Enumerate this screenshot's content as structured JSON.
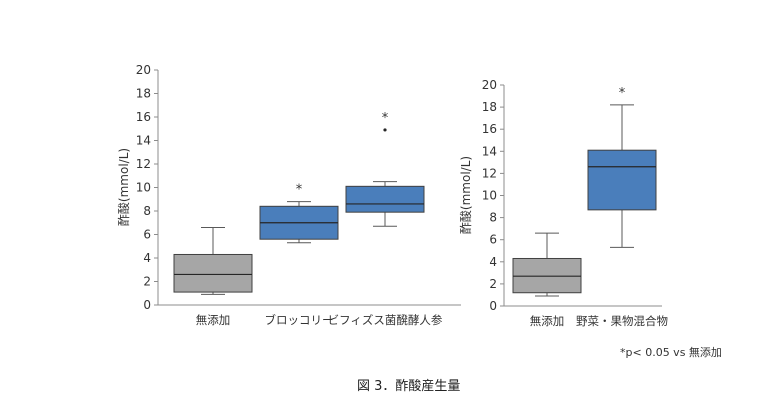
{
  "chart_data": [
    {
      "type": "box",
      "ylabel": "酢酸(mmol/L)",
      "ylim": [
        0,
        20
      ],
      "yticks": [
        0,
        2,
        4,
        6,
        8,
        10,
        12,
        14,
        16,
        18,
        20
      ],
      "categories": [
        "無添加",
        "ブロッコリー",
        "ビフィズス菌醗酵人参"
      ],
      "boxes": [
        {
          "category": "無添加",
          "min": 0.9,
          "q1": 1.1,
          "median": 2.6,
          "q3": 4.3,
          "max": 6.6,
          "outliers": [],
          "significant": false,
          "color": "#a6a6a6"
        },
        {
          "category": "ブロッコリー",
          "min": 5.3,
          "q1": 5.6,
          "median": 7.0,
          "q3": 8.4,
          "max": 8.8,
          "outliers": [],
          "significant": true,
          "color": "#4a7ebb"
        },
        {
          "category": "ビフィズス菌醗酵人参",
          "min": 6.7,
          "q1": 7.9,
          "median": 8.6,
          "q3": 10.1,
          "max": 10.5,
          "outliers": [
            14.9
          ],
          "significant": true,
          "color": "#4a7ebb"
        }
      ]
    },
    {
      "type": "box",
      "ylabel": "酢酸(mmol/L)",
      "ylim": [
        0,
        20
      ],
      "yticks": [
        0,
        2,
        4,
        6,
        8,
        10,
        12,
        14,
        16,
        18,
        20
      ],
      "categories": [
        "無添加",
        "野菜・果物混合物"
      ],
      "boxes": [
        {
          "category": "無添加",
          "min": 0.9,
          "q1": 1.2,
          "median": 2.7,
          "q3": 4.3,
          "max": 6.6,
          "outliers": [],
          "significant": false,
          "color": "#a6a6a6"
        },
        {
          "category": "野菜・果物混合物",
          "min": 5.3,
          "q1": 8.7,
          "median": 12.6,
          "q3": 14.1,
          "max": 18.2,
          "outliers": [],
          "significant": true,
          "color": "#4a7ebb"
        }
      ]
    }
  ],
  "significance_marker": "*",
  "footnote": "*p< 0.05 vs 無添加",
  "caption": "図 3．酢酸産生量"
}
